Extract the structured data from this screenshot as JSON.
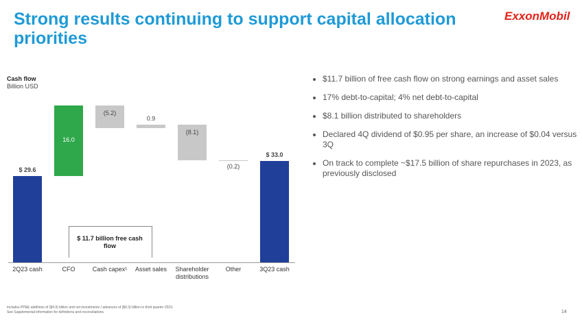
{
  "title": "Strong results continuing to support capital allocation priorities",
  "logo": "ExxonMobil",
  "bullets": [
    "$11.7 billion of free cash flow on strong earnings and asset sales",
    "17% debt-to-capital; 4% net debt-to-capital",
    "$8.1 billion distributed to shareholders",
    "Declared 4Q dividend of $0.95 per share, an increase of $0.04 versus 3Q",
    "On track to complete ~$17.5 billion of share repurchases in 2023, as previously disclosed"
  ],
  "footnote": [
    "Includes PP&E additions of ($4.9) billion and net investments / advances of ($0.3) billion in third quarter 2023.",
    "See Supplemental information for definitions and reconciliations."
  ],
  "page_number": "14",
  "chart_data": {
    "type": "waterfall",
    "y_label": "Cash flow",
    "y_unit": "Billion USD",
    "categories": [
      "2Q23 cash",
      "CFO",
      "Cash capex¹",
      "Asset sales",
      "Shareholder distributions",
      "Other",
      "3Q23 cash"
    ],
    "values": [
      29.6,
      16.0,
      -5.2,
      0.9,
      -8.1,
      -0.2,
      33.0
    ],
    "value_labels": [
      "$ 29.6",
      "16.0",
      "(5.2)",
      "0.9",
      "(8.1)",
      "(0.2)",
      "$ 33.0"
    ],
    "measure": [
      "absolute",
      "relative",
      "relative",
      "relative",
      "relative",
      "relative",
      "absolute"
    ],
    "colors": [
      "#1f3f99",
      "#2ea84a",
      "#c8c8c8",
      "#c8c8c8",
      "#c8c8c8",
      "#c8c8c8",
      "#1f3f99"
    ],
    "ylim": [
      10,
      47
    ],
    "annotation": "$ 11.7 billion free cash flow"
  }
}
